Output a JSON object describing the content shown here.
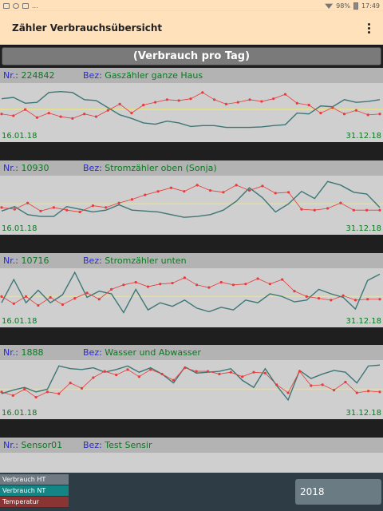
{
  "statusbar": {
    "battery": "98%",
    "time": "17:49",
    "dots": "..."
  },
  "appbar": {
    "title": "Zähler Verbrauchsübersicht"
  },
  "subtitle": "(Verbrauch pro Tag)",
  "labels": {
    "nr": "Nr.:",
    "bez": "Bez:"
  },
  "colors": {
    "ht": "#e83a3a",
    "nt": "#3d7676",
    "avg": "#f2e94a",
    "temp": "#8a3434",
    "legend_ht": "#6f7a82",
    "legend_nt": "#138585"
  },
  "meters": [
    {
      "nr": "224842",
      "bez": "Gaszähler ganze Haus",
      "start": "16.01.18",
      "end": "31.12.18"
    },
    {
      "nr": "10930",
      "bez": "Stromzähler oben (Sonja)",
      "start": "16.01.18",
      "end": "31.12.18"
    },
    {
      "nr": "10716",
      "bez": "Stromzähler unten",
      "start": "16.01.18",
      "end": "31.12.18"
    },
    {
      "nr": "1888",
      "bez": "Wasser und Abwasser",
      "start": "16.01.18",
      "end": "31.12.18"
    },
    {
      "nr": "Sensor01",
      "bez": "Test Sensir"
    }
  ],
  "legend": {
    "ht": "Verbrauch HT",
    "nt": "Verbrauch NT",
    "temp": "Temperatur"
  },
  "year": "2018",
  "chart_data": [
    {
      "type": "line",
      "series": [
        {
          "values": [
            0.72,
            0.75,
            0.62,
            0.64,
            0.86,
            0.88,
            0.86,
            0.7,
            0.68,
            0.52,
            0.36,
            0.28,
            0.18,
            0.15,
            0.22,
            0.18,
            0.1,
            0.12,
            0.12,
            0.08,
            0.08,
            0.08,
            0.09,
            0.12,
            0.14,
            0.4,
            0.38,
            0.56,
            0.54,
            0.7,
            0.64,
            0.66,
            0.7
          ]
        },
        {
          "values": [
            0.38,
            0.34,
            0.48,
            0.3,
            0.4,
            0.32,
            0.28,
            0.38,
            0.32,
            0.46,
            0.6,
            0.4,
            0.58,
            0.64,
            0.7,
            0.68,
            0.72,
            0.86,
            0.7,
            0.6,
            0.64,
            0.7,
            0.66,
            0.72,
            0.82,
            0.62,
            0.58,
            0.4,
            0.52,
            0.38,
            0.46,
            0.36,
            0.38
          ]
        }
      ],
      "avg": 0.48
    },
    {
      "type": "line",
      "series": [
        {
          "values": [
            0.28,
            0.38,
            0.2,
            0.16,
            0.16,
            0.38,
            0.32,
            0.26,
            0.3,
            0.42,
            0.3,
            0.28,
            0.26,
            0.2,
            0.14,
            0.16,
            0.2,
            0.3,
            0.5,
            0.8,
            0.58,
            0.26,
            0.44,
            0.72,
            0.56,
            0.94,
            0.86,
            0.7,
            0.66,
            0.36
          ]
        },
        {
          "values": [
            0.36,
            0.32,
            0.46,
            0.28,
            0.36,
            0.3,
            0.26,
            0.4,
            0.36,
            0.46,
            0.54,
            0.64,
            0.72,
            0.8,
            0.72,
            0.86,
            0.74,
            0.7,
            0.86,
            0.74,
            0.84,
            0.68,
            0.7,
            0.32,
            0.3,
            0.34,
            0.46,
            0.3,
            0.3,
            0.3
          ]
        }
      ],
      "avg": 0.44
    },
    {
      "type": "line",
      "series": [
        {
          "values": [
            0.3,
            0.82,
            0.3,
            0.58,
            0.3,
            0.48,
            0.98,
            0.42,
            0.56,
            0.5,
            0.08,
            0.6,
            0.14,
            0.3,
            0.22,
            0.36,
            0.18,
            0.1,
            0.2,
            0.14,
            0.36,
            0.3,
            0.5,
            0.44,
            0.32,
            0.36,
            0.6,
            0.5,
            0.42,
            0.16,
            0.8,
            0.94
          ]
        },
        {
          "values": [
            0.44,
            0.28,
            0.44,
            0.24,
            0.42,
            0.26,
            0.4,
            0.52,
            0.38,
            0.6,
            0.7,
            0.76,
            0.66,
            0.72,
            0.74,
            0.86,
            0.7,
            0.64,
            0.76,
            0.7,
            0.72,
            0.84,
            0.72,
            0.82,
            0.56,
            0.44,
            0.4,
            0.36,
            0.46,
            0.36,
            0.38,
            0.38
          ]
        }
      ],
      "avg": 0.44
    },
    {
      "type": "line",
      "series": [
        {
          "values": [
            0.32,
            0.4,
            0.46,
            0.36,
            0.42,
            0.94,
            0.88,
            0.86,
            0.9,
            0.8,
            0.86,
            0.94,
            0.8,
            0.9,
            0.76,
            0.56,
            0.92,
            0.78,
            0.8,
            0.82,
            0.88,
            0.62,
            0.46,
            0.88,
            0.5,
            0.18,
            0.84,
            0.66,
            0.76,
            0.84,
            0.8,
            0.56,
            0.94,
            0.96
          ]
        },
        {
          "values": [
            0.36,
            0.28,
            0.42,
            0.24,
            0.36,
            0.32,
            0.56,
            0.44,
            0.68,
            0.82,
            0.74,
            0.86,
            0.7,
            0.86,
            0.76,
            0.62,
            0.9,
            0.82,
            0.82,
            0.76,
            0.8,
            0.7,
            0.8,
            0.78,
            0.52,
            0.34,
            0.82,
            0.5,
            0.52,
            0.4,
            0.58,
            0.34,
            0.38,
            0.36
          ]
        }
      ],
      "avg": 0.42
    }
  ]
}
